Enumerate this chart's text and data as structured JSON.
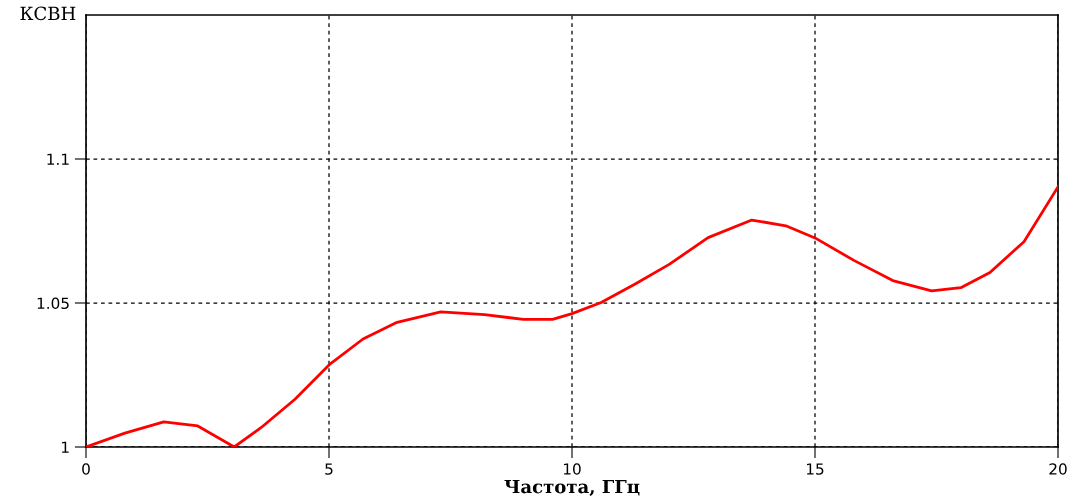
{
  "chart_data": {
    "type": "line",
    "xlabel": "Частота, ГГц",
    "ylabel": "КСВН",
    "x": [
      0,
      0.8,
      1.6,
      2.3,
      3.05,
      3.6,
      4.3,
      5,
      5.7,
      6.4,
      7.3,
      8.2,
      9,
      9.6,
      10,
      10.6,
      11.3,
      12,
      12.8,
      13.7,
      14.4,
      15,
      15.8,
      16.6,
      17.4,
      18,
      18.6,
      19.3,
      20
    ],
    "series": [
      {
        "color": "#ff0000",
        "values": [
          1.0,
          1.0048,
          1.0087,
          1.0073,
          1.0,
          1.0067,
          1.0166,
          1.0285,
          1.0375,
          1.0433,
          1.0469,
          1.046,
          1.0443,
          1.0443,
          1.0463,
          1.0502,
          1.0566,
          1.0634,
          1.0727,
          1.0788,
          1.0768,
          1.0726,
          1.0648,
          1.0578,
          1.0542,
          1.0553,
          1.0606,
          1.0713,
          1.0903
        ]
      }
    ],
    "xlim": [
      0,
      20
    ],
    "xticks": [
      0,
      5,
      10,
      15,
      20
    ],
    "ylim": [
      1,
      1.15
    ],
    "yticks": [
      1,
      1.05,
      1.1
    ],
    "grid": true,
    "line_style": "solid",
    "marker": "none"
  }
}
